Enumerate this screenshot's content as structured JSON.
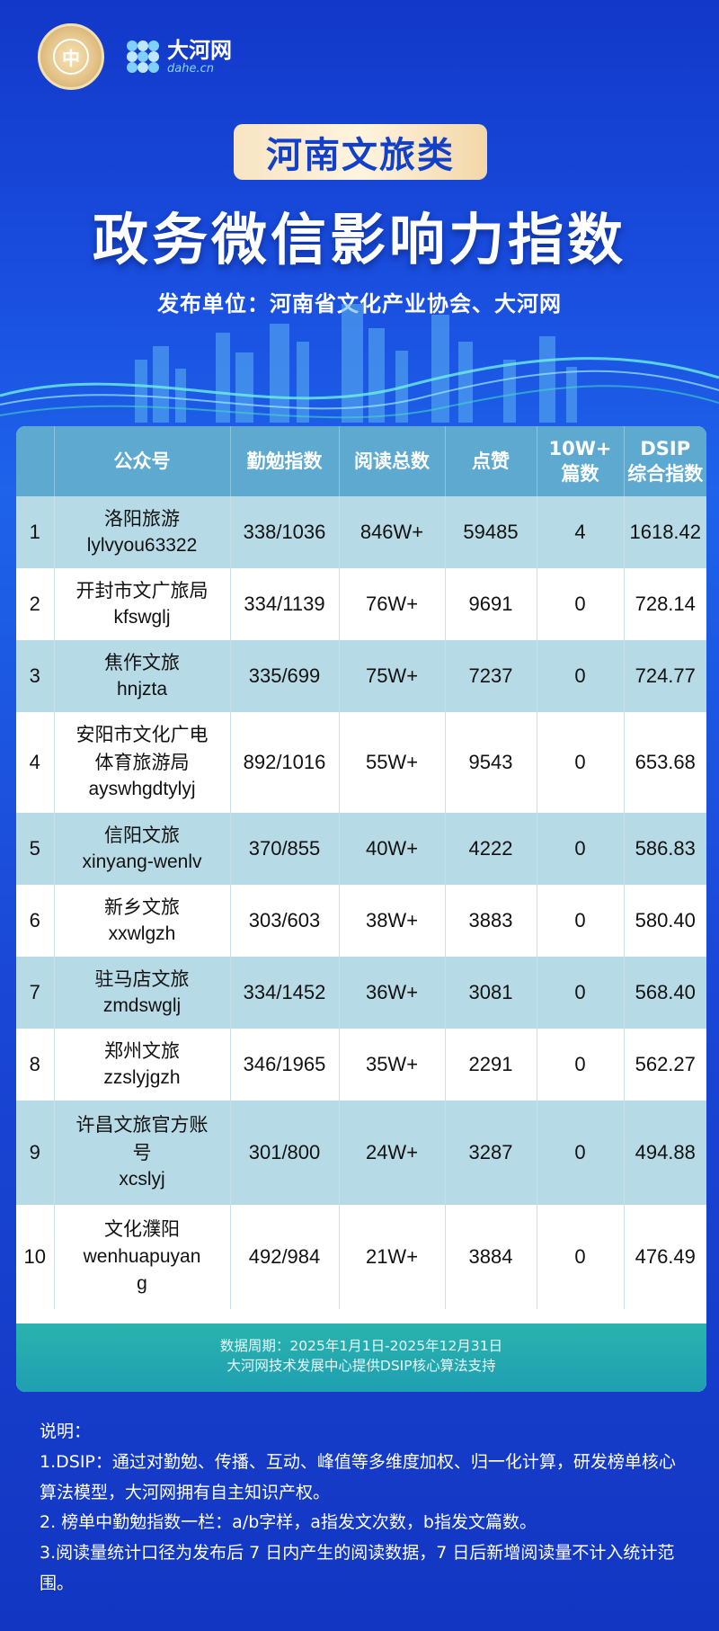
{
  "header": {
    "seal_glyph": "中",
    "brand_name": "大河网",
    "brand_domain": "dahe.cn"
  },
  "title_pill": "河南文旅类",
  "main_title": "政务微信影响力指数",
  "publisher": "发布单位：河南省文化产业协会、大河网",
  "table": {
    "headers": [
      "",
      "公众号",
      "勤勉指数",
      "阅读总数",
      "点赞",
      "10W+\n篇数",
      "DSIP\n综合指数"
    ],
    "rows": [
      {
        "rank": "1",
        "name": "洛阳旅游",
        "account": "lylvyou63322",
        "diligence": "338/1036",
        "reads": "846W+",
        "likes": "59485",
        "tenw": "4",
        "dsip": "1618.42"
      },
      {
        "rank": "2",
        "name": "开封市文广旅局",
        "account": "kfswglj",
        "diligence": "334/1139",
        "reads": "76W+",
        "likes": "9691",
        "tenw": "0",
        "dsip": "728.14"
      },
      {
        "rank": "3",
        "name": "焦作文旅",
        "account": "hnjzta",
        "diligence": "335/699",
        "reads": "75W+",
        "likes": "7237",
        "tenw": "0",
        "dsip": "724.77"
      },
      {
        "rank": "4",
        "name": "安阳市文化广电\n体育旅游局",
        "account": "ayswhgdtylyj",
        "diligence": "892/1016",
        "reads": "55W+",
        "likes": "9543",
        "tenw": "0",
        "dsip": "653.68"
      },
      {
        "rank": "5",
        "name": "信阳文旅",
        "account": "xinyang-wenlv",
        "diligence": "370/855",
        "reads": "40W+",
        "likes": "4222",
        "tenw": "0",
        "dsip": "586.83"
      },
      {
        "rank": "6",
        "name": "新乡文旅",
        "account": "xxwlgzh",
        "diligence": "303/603",
        "reads": "38W+",
        "likes": "3883",
        "tenw": "0",
        "dsip": "580.40"
      },
      {
        "rank": "7",
        "name": "驻马店文旅",
        "account": "zmdswglj",
        "diligence": "334/1452",
        "reads": "36W+",
        "likes": "3081",
        "tenw": "0",
        "dsip": "568.40"
      },
      {
        "rank": "8",
        "name": "郑州文旅",
        "account": "zzslyjgzh",
        "diligence": "346/1965",
        "reads": "35W+",
        "likes": "2291",
        "tenw": "0",
        "dsip": "562.27"
      },
      {
        "rank": "9",
        "name": "许昌文旅官方账\n号",
        "account": "xcslyj",
        "diligence": "301/800",
        "reads": "24W+",
        "likes": "3287",
        "tenw": "0",
        "dsip": "494.88"
      },
      {
        "rank": "10",
        "name": "文化濮阳",
        "account": "wenhuapuyan\ng",
        "diligence": "492/984",
        "reads": "21W+",
        "likes": "3884",
        "tenw": "0",
        "dsip": "476.49"
      }
    ]
  },
  "footer": {
    "period": "数据周期：2025年1月1日-2025年12月31日",
    "support": "大河网技术发展中心提供DSIP核心算法支持"
  },
  "notes": {
    "heading": "说明：",
    "items": [
      "1.DSIP：通过对勤勉、传播、互动、峰值等多维度加权、归一化计算，研发榜单核心算法模型，大河网拥有自主知识产权。",
      "2. 榜单中勤勉指数一栏：a/b字样，a指发文次数，b指发文篇数。",
      "3.阅读量统计口径为发布后 7 日内产生的阅读数据，7 日后新增阅读量不计入统计范围。"
    ]
  }
}
